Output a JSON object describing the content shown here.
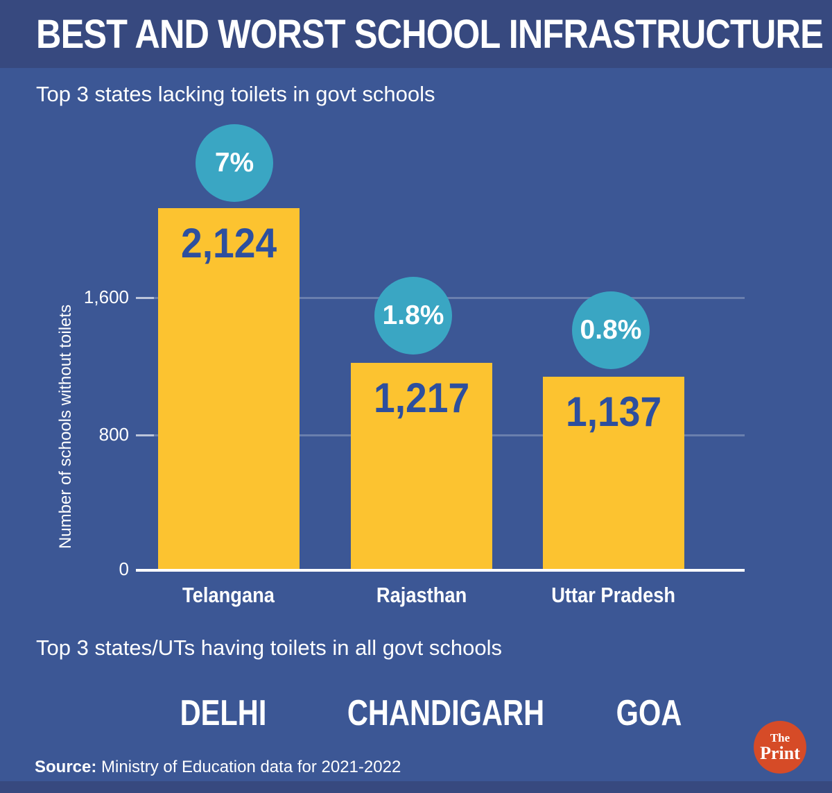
{
  "palette": {
    "header_bg": "#37497f",
    "body_bg": "#3c5795",
    "bar_yellow": "#fcc330",
    "badge_teal": "#3aa6c3",
    "value_blue": "#2d4f9e",
    "logo_orange": "#d64b27",
    "text_white": "#ffffff"
  },
  "header": {
    "title": "BEST AND WORST SCHOOL INFRASTRUCTURE"
  },
  "chart_data": {
    "type": "bar",
    "title": "Top 3 states lacking toilets in govt schools",
    "ylabel": "Number of schools without toilets",
    "xlabel": "",
    "categories": [
      "Telangana",
      "Rajasthan",
      "Uttar Pradesh"
    ],
    "values": [
      2124,
      1217,
      1137
    ],
    "value_labels": [
      "2,124",
      "1,217",
      "1,137"
    ],
    "percent_labels": [
      "7%",
      "1.8%",
      "0.8%"
    ],
    "ytick_values": [
      0,
      800,
      1600
    ],
    "ytick_labels": [
      "0",
      "800",
      "1,600"
    ],
    "ylim": [
      0,
      2200
    ],
    "grid": "horizontal",
    "legend": "none",
    "bar_color": "#fcc330",
    "badge_color": "#3aa6c3"
  },
  "section_best": {
    "title": "Top 3 states/UTs having toilets in all govt schools",
    "items": [
      "DELHI",
      "CHANDIGARH",
      "GOA"
    ]
  },
  "source": {
    "label": "Source:",
    "text": " Ministry of Education data for 2021-2022"
  },
  "logo": {
    "top": "The",
    "bottom": "Print"
  }
}
